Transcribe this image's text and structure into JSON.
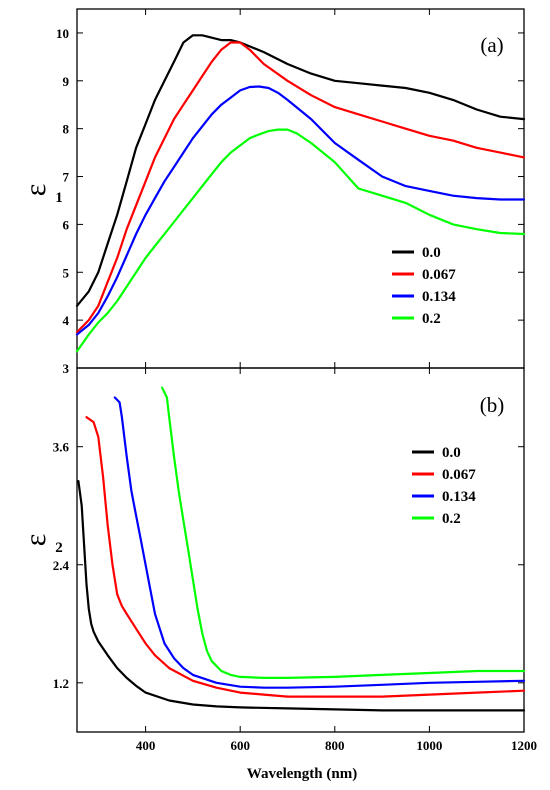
{
  "x_axis_label": "Wavelength (nm)",
  "chart_data": [
    {
      "type": "line",
      "panel_label": "(a)",
      "ylabel": "ε",
      "ylabel_sub": "1",
      "xlim": [
        255,
        1200
      ],
      "ylim": [
        3,
        10.5
      ],
      "x_ticks": [
        "400",
        "600",
        "800",
        "1000",
        "1200"
      ],
      "y_ticks": [
        "3",
        "4",
        "5",
        "6",
        "7",
        "8",
        "9",
        "10"
      ],
      "legend_position": "center-right",
      "series": [
        {
          "name": "0.0",
          "color": "#000000",
          "x": [
            255,
            280,
            300,
            320,
            340,
            360,
            380,
            400,
            420,
            440,
            460,
            480,
            500,
            520,
            540,
            560,
            580,
            600,
            650,
            700,
            750,
            800,
            850,
            900,
            950,
            1000,
            1050,
            1100,
            1150,
            1200
          ],
          "y": [
            4.3,
            4.6,
            5.0,
            5.6,
            6.2,
            6.9,
            7.6,
            8.1,
            8.6,
            9.0,
            9.4,
            9.8,
            9.95,
            9.95,
            9.9,
            9.85,
            9.85,
            9.8,
            9.6,
            9.35,
            9.15,
            9.0,
            8.95,
            8.9,
            8.85,
            8.75,
            8.6,
            8.4,
            8.25,
            8.2
          ]
        },
        {
          "name": "0.067",
          "color": "#ff0000",
          "x": [
            255,
            280,
            300,
            320,
            340,
            360,
            380,
            400,
            420,
            440,
            460,
            480,
            500,
            520,
            540,
            560,
            580,
            600,
            620,
            650,
            700,
            750,
            800,
            850,
            900,
            950,
            1000,
            1050,
            1100,
            1150,
            1200
          ],
          "y": [
            3.75,
            4.0,
            4.3,
            4.8,
            5.3,
            5.9,
            6.4,
            6.9,
            7.4,
            7.8,
            8.2,
            8.5,
            8.8,
            9.1,
            9.4,
            9.65,
            9.8,
            9.8,
            9.65,
            9.35,
            9.0,
            8.7,
            8.45,
            8.3,
            8.15,
            8.0,
            7.85,
            7.75,
            7.6,
            7.5,
            7.4
          ]
        },
        {
          "name": "0.134",
          "color": "#0000ff",
          "x": [
            255,
            280,
            300,
            320,
            340,
            360,
            380,
            400,
            420,
            440,
            460,
            480,
            500,
            520,
            540,
            560,
            580,
            600,
            620,
            640,
            660,
            680,
            700,
            750,
            800,
            850,
            900,
            950,
            1000,
            1050,
            1100,
            1150,
            1200
          ],
          "y": [
            3.7,
            3.9,
            4.15,
            4.5,
            4.9,
            5.35,
            5.8,
            6.2,
            6.55,
            6.9,
            7.2,
            7.5,
            7.8,
            8.05,
            8.3,
            8.5,
            8.65,
            8.8,
            8.87,
            8.88,
            8.85,
            8.75,
            8.6,
            8.2,
            7.7,
            7.35,
            7.0,
            6.8,
            6.7,
            6.6,
            6.55,
            6.52,
            6.52
          ]
        },
        {
          "name": "0.2",
          "color": "#00ff00",
          "x": [
            255,
            280,
            300,
            320,
            340,
            360,
            380,
            400,
            420,
            440,
            460,
            480,
            500,
            520,
            540,
            560,
            580,
            600,
            620,
            640,
            660,
            680,
            700,
            720,
            750,
            800,
            850,
            900,
            950,
            1000,
            1050,
            1100,
            1150,
            1200
          ],
          "y": [
            3.35,
            3.7,
            3.95,
            4.15,
            4.4,
            4.7,
            5.0,
            5.3,
            5.55,
            5.8,
            6.05,
            6.3,
            6.55,
            6.8,
            7.05,
            7.3,
            7.5,
            7.65,
            7.8,
            7.88,
            7.95,
            7.98,
            7.98,
            7.9,
            7.7,
            7.3,
            6.75,
            6.6,
            6.45,
            6.2,
            6.0,
            5.9,
            5.82,
            5.8
          ]
        }
      ]
    },
    {
      "type": "line",
      "panel_label": "(b)",
      "ylabel": "ε",
      "ylabel_sub": "2",
      "xlim": [
        255,
        1200
      ],
      "ylim": [
        0.7,
        4.4
      ],
      "x_ticks": [
        "400",
        "600",
        "800",
        "1000",
        "1200"
      ],
      "y_ticks": [
        "1.2",
        "2.4",
        "3.6"
      ],
      "legend_position": "top-right",
      "series": [
        {
          "name": "0.0",
          "color": "#000000",
          "x": [
            258,
            265,
            270,
            275,
            280,
            285,
            290,
            300,
            320,
            340,
            360,
            380,
            400,
            450,
            500,
            550,
            600,
            700,
            800,
            900,
            1000,
            1100,
            1200
          ],
          "y": [
            3.25,
            3.0,
            2.6,
            2.2,
            1.95,
            1.8,
            1.72,
            1.62,
            1.48,
            1.35,
            1.25,
            1.17,
            1.1,
            1.02,
            0.98,
            0.96,
            0.95,
            0.94,
            0.93,
            0.92,
            0.92,
            0.92,
            0.92
          ]
        },
        {
          "name": "0.067",
          "color": "#ff0000",
          "x": [
            275,
            290,
            300,
            310,
            320,
            330,
            340,
            350,
            360,
            380,
            400,
            420,
            450,
            500,
            550,
            600,
            650,
            700,
            800,
            900,
            1000,
            1100,
            1200
          ],
          "y": [
            3.9,
            3.85,
            3.7,
            3.3,
            2.8,
            2.4,
            2.1,
            1.98,
            1.9,
            1.75,
            1.6,
            1.48,
            1.35,
            1.22,
            1.15,
            1.1,
            1.08,
            1.06,
            1.06,
            1.06,
            1.08,
            1.1,
            1.12
          ]
        },
        {
          "name": "0.134",
          "color": "#0000ff",
          "x": [
            335,
            345,
            350,
            360,
            370,
            380,
            390,
            400,
            410,
            420,
            440,
            460,
            480,
            500,
            550,
            600,
            650,
            700,
            800,
            900,
            1000,
            1100,
            1200
          ],
          "y": [
            4.1,
            4.05,
            3.9,
            3.5,
            3.15,
            2.9,
            2.65,
            2.4,
            2.15,
            1.9,
            1.6,
            1.45,
            1.35,
            1.28,
            1.2,
            1.16,
            1.15,
            1.15,
            1.16,
            1.18,
            1.2,
            1.21,
            1.22
          ]
        },
        {
          "name": "0.2",
          "color": "#00ff00",
          "x": [
            435,
            445,
            450,
            460,
            470,
            480,
            490,
            500,
            510,
            520,
            530,
            540,
            560,
            580,
            600,
            650,
            700,
            800,
            900,
            1000,
            1100,
            1200
          ],
          "y": [
            4.2,
            4.1,
            3.9,
            3.5,
            3.15,
            2.85,
            2.55,
            2.25,
            1.95,
            1.7,
            1.52,
            1.42,
            1.32,
            1.28,
            1.26,
            1.25,
            1.25,
            1.26,
            1.28,
            1.3,
            1.32,
            1.32
          ]
        }
      ]
    }
  ]
}
